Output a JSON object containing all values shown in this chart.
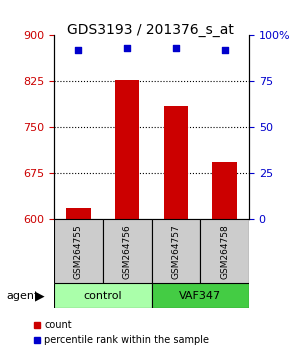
{
  "title": "GDS3193 / 201376_s_at",
  "samples": [
    "GSM264755",
    "GSM264756",
    "GSM264757",
    "GSM264758"
  ],
  "counts": [
    618,
    828,
    785,
    693
  ],
  "percentile_ranks": [
    92,
    93,
    93,
    92
  ],
  "ylim_left": [
    600,
    900
  ],
  "yticks_left": [
    600,
    675,
    750,
    825,
    900
  ],
  "ylim_right": [
    0,
    100
  ],
  "yticks_right": [
    0,
    25,
    50,
    75,
    100
  ],
  "bar_color": "#cc0000",
  "dot_color": "#0000cc",
  "groups": [
    {
      "label": "control",
      "samples": [
        0,
        1
      ],
      "color": "#90ee90"
    },
    {
      "label": "VAF347",
      "samples": [
        2,
        3
      ],
      "color": "#00cc00"
    }
  ],
  "group_label": "agent",
  "legend_count_label": "count",
  "legend_pct_label": "percentile rank within the sample",
  "grid_color": "#000000",
  "background_color": "#ffffff",
  "plot_bg_color": "#ffffff",
  "title_fontsize": 10,
  "tick_fontsize": 8,
  "label_fontsize": 8
}
